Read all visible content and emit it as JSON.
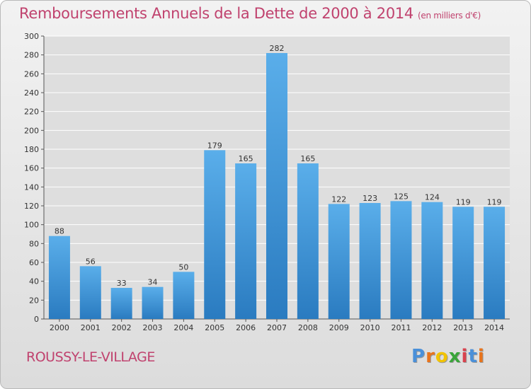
{
  "chart_data": {
    "type": "bar",
    "title": "Remboursements Annuels de la Dette de 2000 à 2014",
    "subtitle": "(en milliers d'€)",
    "categories": [
      "2000",
      "2001",
      "2002",
      "2003",
      "2004",
      "2005",
      "2006",
      "2007",
      "2008",
      "2009",
      "2010",
      "2011",
      "2012",
      "2013",
      "2014"
    ],
    "values": [
      88,
      56,
      33,
      34,
      50,
      179,
      165,
      282,
      165,
      122,
      123,
      125,
      124,
      119,
      119
    ],
    "ylim": [
      0,
      300
    ],
    "yticks": [
      0,
      20,
      40,
      60,
      80,
      100,
      120,
      140,
      160,
      180,
      200,
      220,
      240,
      260,
      280,
      300
    ],
    "grid": true,
    "xlabel": "",
    "ylabel": "",
    "bar_color": "#3a8fd6",
    "grid_color": "#ffffff"
  },
  "footer": {
    "commune": "ROUSSY-LE-VILLAGE",
    "logo_letters": [
      "P",
      "r",
      "o",
      "x",
      "i",
      "t",
      "i"
    ],
    "logo_colors": [
      "#4a90d9",
      "#e8741c",
      "#f2c300",
      "#3aa53a",
      "#d9434e",
      "#4a90d9",
      "#e8741c"
    ]
  },
  "colors": {
    "title": "#c0426e"
  }
}
